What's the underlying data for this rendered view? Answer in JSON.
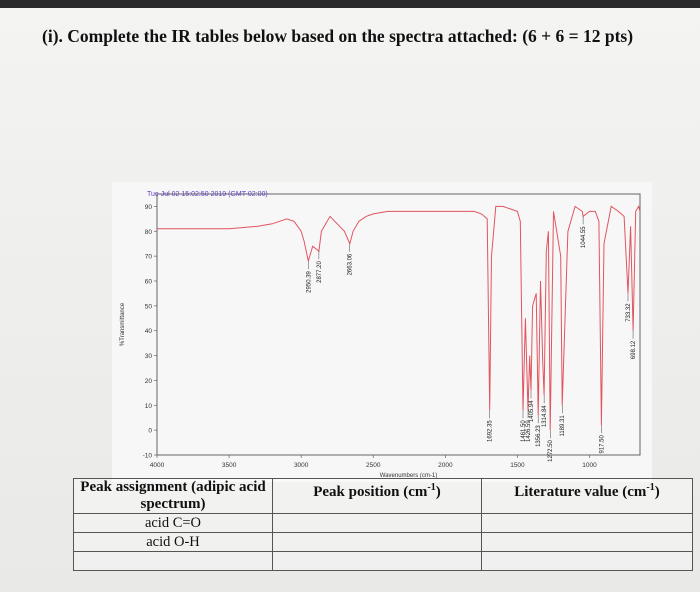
{
  "question": {
    "heading": "(i). Complete the IR tables below based on the spectra attached: (6 + 6 = 12 pts)"
  },
  "chart_data": {
    "type": "line",
    "header_text": "Tue Jul 02 15:02:50 2019 (GMT-02:00)",
    "xlabel": "Wavenumbers (cm-1)",
    "ylabel": "%Transmittance",
    "xlim": [
      4000,
      650
    ],
    "ylim": [
      -10,
      95
    ],
    "x_ticks": [
      "4000",
      "3500",
      "3000",
      "2500",
      "2000",
      "1500",
      "1000"
    ],
    "y_ticks": [
      "90",
      "80",
      "70",
      "60",
      "50",
      "40",
      "30",
      "20",
      "10",
      "0",
      "-10"
    ],
    "line_color": "#e05560",
    "series": [
      {
        "x": [
          4000,
          3750,
          3500,
          3300,
          3200,
          3100,
          3050,
          3000,
          2980,
          2950.39,
          2920,
          2877.2,
          2860,
          2800,
          2750,
          2700,
          2663.06,
          2640,
          2600,
          2550,
          2500,
          2400,
          2300,
          2200,
          2100,
          2000,
          1900,
          1850,
          1800,
          1750,
          1710,
          1692.35,
          1680,
          1650,
          1600,
          1550,
          1500,
          1480,
          1461.5,
          1445,
          1426.59,
          1415,
          1405.94,
          1395,
          1370,
          1356.23,
          1340,
          1325,
          1314.84,
          1300,
          1285,
          1272.5,
          1250,
          1200,
          1189.31,
          1150,
          1100,
          1050,
          1044.55,
          1000,
          960,
          935,
          917.5,
          900,
          850,
          800,
          760,
          733.32,
          715,
          698.12,
          680,
          660,
          650
        ],
        "y": [
          81,
          81,
          81,
          82,
          83,
          85,
          84,
          80,
          76,
          68,
          74,
          72,
          80,
          86,
          83,
          80,
          75,
          80,
          84,
          86,
          87,
          88,
          88,
          88,
          88,
          88,
          88,
          88,
          88,
          87,
          85,
          8,
          70,
          90,
          90,
          89,
          88,
          84,
          8,
          45,
          8,
          30,
          16,
          50,
          55,
          6,
          60,
          28,
          14,
          72,
          80,
          0,
          88,
          70,
          10,
          80,
          90,
          88,
          86,
          88,
          88,
          84,
          2,
          75,
          90,
          88,
          86,
          55,
          82,
          40,
          88,
          90,
          88
        ]
      }
    ],
    "peak_labels": [
      {
        "x": 2950.39,
        "label": "2950.39"
      },
      {
        "x": 2877.2,
        "label": "2877.20"
      },
      {
        "x": 2663.06,
        "label": "2663.06"
      },
      {
        "x": 1692.35,
        "label": "1692.35"
      },
      {
        "x": 1461.5,
        "label": "1461.50"
      },
      {
        "x": 1426.59,
        "label": "1426.59"
      },
      {
        "x": 1405.94,
        "label": "1405.94"
      },
      {
        "x": 1356.23,
        "label": "1356.23"
      },
      {
        "x": 1314.84,
        "label": "1314.84"
      },
      {
        "x": 1272.5,
        "label": "1272.50"
      },
      {
        "x": 1189.31,
        "label": "1189.31"
      },
      {
        "x": 1044.55,
        "label": "1044.55"
      },
      {
        "x": 917.5,
        "label": "917.50"
      },
      {
        "x": 733.32,
        "label": "733.32"
      },
      {
        "x": 698.12,
        "label": "698.12"
      }
    ]
  },
  "table": {
    "headers": [
      "Peak assignment (adipic acid spectrum)",
      "Peak position (cm-1)",
      "Literature value (cm-1)"
    ],
    "header_unit_base": "Peak position (cm",
    "header_unit_sup": "-1",
    "header_unit_end": ")",
    "lit_base": "Literature value (cm",
    "lit_sup": "-1",
    "lit_end": ")",
    "rows": [
      {
        "assignment": "acid C=O",
        "position": "",
        "literature": ""
      },
      {
        "assignment": "acid O-H",
        "position": "",
        "literature": ""
      },
      {
        "assignment": "",
        "position": "",
        "literature": ""
      }
    ]
  }
}
